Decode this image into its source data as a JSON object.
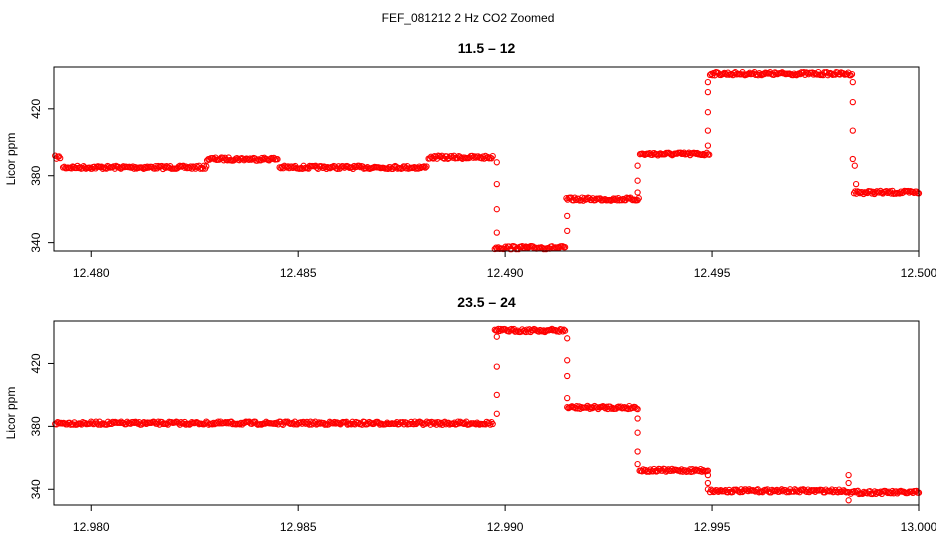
{
  "figure": {
    "title": "FEF_081212  2 Hz CO2 Zoomed"
  },
  "style": {
    "point_color": "#ff0000",
    "axis_color": "#000000"
  },
  "chart_data": [
    {
      "type": "scatter",
      "title": "11.5 – 12",
      "xlabel": "",
      "ylabel": "Licor ppm",
      "xlim": [
        12.4791,
        12.5
      ],
      "ylim": [
        335,
        445
      ],
      "xticks": [
        12.48,
        12.485,
        12.49,
        12.495,
        12.5
      ],
      "xtick_labels": [
        "12.480",
        "12.485",
        "12.490",
        "12.495",
        "12.500"
      ],
      "yticks": [
        340,
        380,
        420
      ],
      "ytick_labels": [
        "340",
        "380",
        "420"
      ],
      "marker": "open-circle",
      "grid": false,
      "segments": [
        {
          "x0": 12.47913,
          "x1": 12.47925,
          "y": 391
        },
        {
          "x0": 12.47932,
          "x1": 12.48278,
          "y": 385
        },
        {
          "x0": 12.4828,
          "x1": 12.4845,
          "y": 390
        },
        {
          "x0": 12.48455,
          "x1": 12.4881,
          "y": 385
        },
        {
          "x0": 12.48815,
          "x1": 12.4897,
          "y": 391
        },
        {
          "x0": 12.48975,
          "x1": 12.49145,
          "y": 337
        },
        {
          "x0": 12.49148,
          "x1": 12.49323,
          "y": 366
        },
        {
          "x0": 12.49326,
          "x1": 12.49493,
          "y": 393
        },
        {
          "x0": 12.49495,
          "x1": 12.49838,
          "y": 441
        },
        {
          "x0": 12.49843,
          "x1": 12.5,
          "y": 370
        }
      ],
      "transitions": [
        {
          "x": 12.4898,
          "y": 388
        },
        {
          "x": 12.4898,
          "y": 375
        },
        {
          "x": 12.4898,
          "y": 360
        },
        {
          "x": 12.4898,
          "y": 346
        },
        {
          "x": 12.4915,
          "y": 347
        },
        {
          "x": 12.4915,
          "y": 356
        },
        {
          "x": 12.4932,
          "y": 370
        },
        {
          "x": 12.4932,
          "y": 377
        },
        {
          "x": 12.4932,
          "y": 386
        },
        {
          "x": 12.4949,
          "y": 398
        },
        {
          "x": 12.4949,
          "y": 407
        },
        {
          "x": 12.4949,
          "y": 418
        },
        {
          "x": 12.4949,
          "y": 430
        },
        {
          "x": 12.4949,
          "y": 436
        },
        {
          "x": 12.4984,
          "y": 436
        },
        {
          "x": 12.4984,
          "y": 424
        },
        {
          "x": 12.4984,
          "y": 407
        },
        {
          "x": 12.4984,
          "y": 390
        },
        {
          "x": 12.49845,
          "y": 386
        },
        {
          "x": 12.49848,
          "y": 375
        }
      ]
    },
    {
      "type": "scatter",
      "title": "23.5 – 24",
      "xlabel": "",
      "ylabel": "Licor ppm",
      "xlim": [
        12.9791,
        13.0
      ],
      "ylim": [
        330,
        447
      ],
      "xticks": [
        12.98,
        12.985,
        12.99,
        12.995,
        13.0
      ],
      "xtick_labels": [
        "12.980",
        "12.985",
        "12.990",
        "12.995",
        "13.000"
      ],
      "yticks": [
        340,
        380,
        420
      ],
      "ytick_labels": [
        "340",
        "380",
        "420"
      ],
      "marker": "open-circle",
      "grid": false,
      "segments": [
        {
          "x0": 12.97913,
          "x1": 12.9897,
          "y": 382
        },
        {
          "x0": 12.98975,
          "x1": 12.99145,
          "y": 441
        },
        {
          "x0": 12.9915,
          "x1": 12.9932,
          "y": 392
        },
        {
          "x0": 12.99325,
          "x1": 12.9949,
          "y": 352
        },
        {
          "x0": 12.99495,
          "x1": 12.9983,
          "y": 339
        },
        {
          "x0": 12.99835,
          "x1": 13.0,
          "y": 338
        }
      ],
      "transitions": [
        {
          "x": 12.9898,
          "y": 388
        },
        {
          "x": 12.9898,
          "y": 400
        },
        {
          "x": 12.9898,
          "y": 418
        },
        {
          "x": 12.9898,
          "y": 437
        },
        {
          "x": 12.9915,
          "y": 436
        },
        {
          "x": 12.9915,
          "y": 422
        },
        {
          "x": 12.9915,
          "y": 412
        },
        {
          "x": 12.9915,
          "y": 398
        },
        {
          "x": 12.9932,
          "y": 385
        },
        {
          "x": 12.9932,
          "y": 376
        },
        {
          "x": 12.9932,
          "y": 364
        },
        {
          "x": 12.9932,
          "y": 356
        },
        {
          "x": 12.9949,
          "y": 349
        },
        {
          "x": 12.9949,
          "y": 344
        },
        {
          "x": 12.9949,
          "y": 340
        },
        {
          "x": 12.9983,
          "y": 349
        },
        {
          "x": 12.9983,
          "y": 344
        },
        {
          "x": 12.9983,
          "y": 333
        }
      ]
    }
  ]
}
